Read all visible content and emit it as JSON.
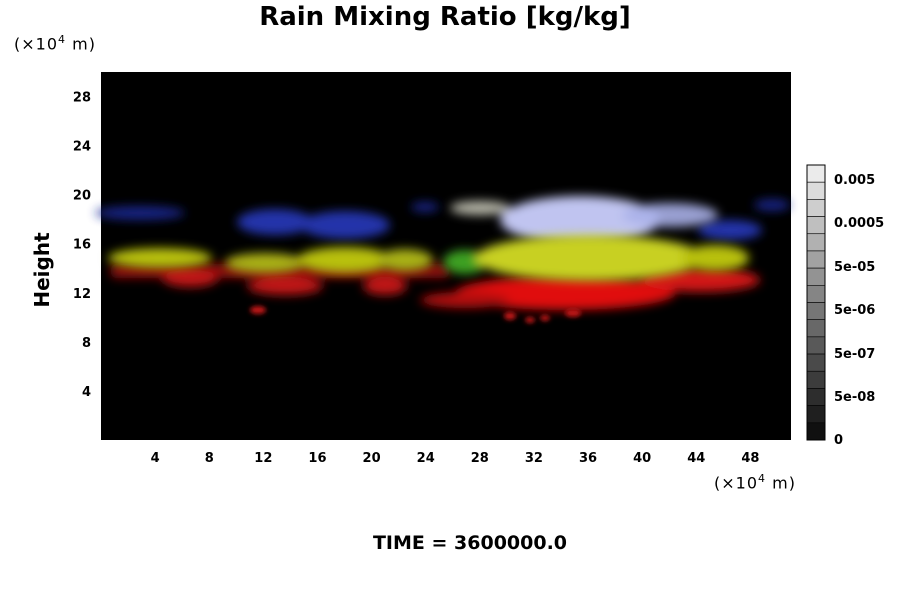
{
  "chart_data": {
    "type": "heatmap",
    "title": "Rain Mixing Ratio [kg/kg]",
    "ylabel": "Height",
    "xlabel": "",
    "x_unit_prefix": "(×10",
    "x_unit_exp": "4",
    "x_unit_suffix": " m)",
    "y_unit_prefix": "(×10",
    "y_unit_exp": "4",
    "y_unit_suffix": " m)",
    "xlim": [
      0,
      51
    ],
    "ylim": [
      0,
      30
    ],
    "x_ticks": [
      "4",
      "8",
      "12",
      "16",
      "20",
      "24",
      "28",
      "32",
      "36",
      "40",
      "44",
      "48"
    ],
    "y_ticks": [
      "4",
      "8",
      "12",
      "16",
      "20",
      "24",
      "28"
    ],
    "colorbar": {
      "labels": [
        "0.005",
        "0.0005",
        "5e-05",
        "5e-06",
        "5e-07",
        "5e-08",
        "0"
      ],
      "steps": 16
    },
    "background_color": "#000000",
    "field_colors": {
      "low": "#e01010",
      "mid": "#c8d020",
      "high": "#3848d8",
      "top": "#c8ccf0"
    },
    "footer": "TIME = 3600000.0"
  }
}
